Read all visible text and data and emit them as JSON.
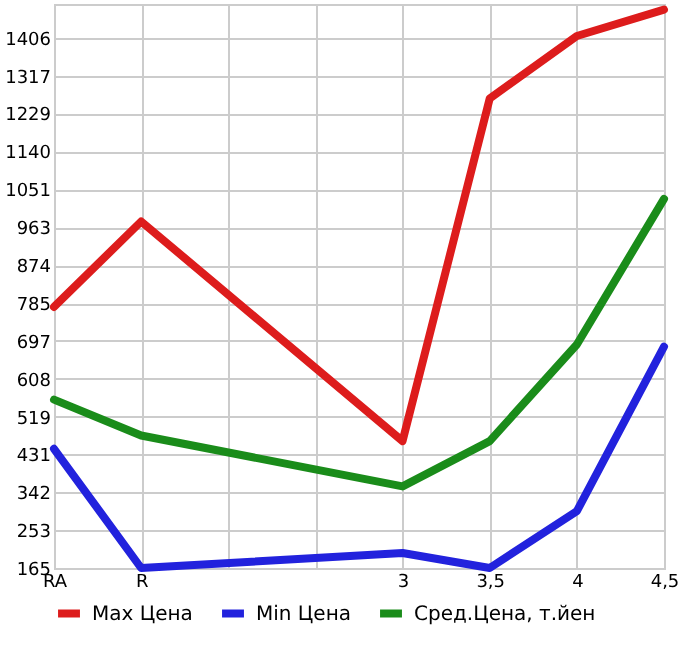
{
  "chart_data": {
    "type": "line",
    "categories": [
      "RA",
      "R",
      null,
      null,
      "3",
      "3,5",
      "4",
      "4,5"
    ],
    "series": [
      {
        "name": "Max Цена",
        "color": "#dd1c1c",
        "values": [
          776,
          976,
          null,
          null,
          462,
          1264,
          1410,
          1472
        ]
      },
      {
        "name": "Min Цена",
        "color": "#2222dd",
        "values": [
          444,
          165,
          null,
          null,
          200,
          165,
          298,
          683
        ]
      },
      {
        "name": "Сред.Цена, т.йен",
        "color": "#1a8c1a",
        "values": [
          559,
          475,
          null,
          null,
          356,
          462,
          688,
          1029
        ]
      }
    ],
    "ylim": [
      165,
      1485
    ],
    "yticks": [
      165,
      253,
      342,
      431,
      519,
      608,
      697,
      785,
      874,
      963,
      1051,
      1140,
      1229,
      1317,
      1406
    ],
    "grid": true,
    "legend": "bottom",
    "marker": "none",
    "line_style": "solid"
  }
}
